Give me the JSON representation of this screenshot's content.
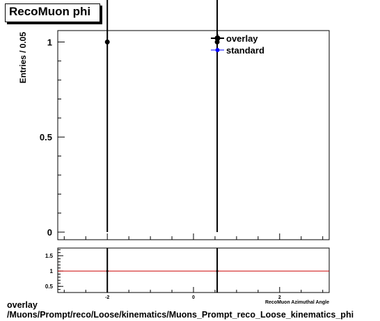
{
  "title": "RecoMuon phi",
  "footer": {
    "line1": "overlay",
    "line2": "/Muons/Prompt/reco/Loose/kinematics/Muons_Prompt_reco_Loose_kinematics_phi"
  },
  "colors": {
    "overlay": "#000000",
    "standard": "#0000ff",
    "ratio_line": "#cc0000",
    "frame": "#000000"
  },
  "chart_data": [
    {
      "type": "scatter",
      "title": "RecoMuon phi",
      "ylabel": "Entries / 0.05",
      "xlim": [
        -3.15,
        3.15
      ],
      "ylim": [
        -0.04,
        1.06
      ],
      "yticks": [
        0,
        0.5,
        1
      ],
      "ytick_labels": [
        "0",
        "0.5",
        "1"
      ],
      "legend_position": "top-right",
      "series": [
        {
          "name": "overlay",
          "marker": "filled-circle",
          "points": [
            {
              "x": -2.0,
              "y": 1,
              "yerr_low": 1,
              "yerr_high": 1
            },
            {
              "x": 0.55,
              "y": 1,
              "yerr_low": 1,
              "yerr_high": 1
            }
          ]
        },
        {
          "name": "standard",
          "marker": "filled-circle",
          "points": []
        }
      ]
    },
    {
      "type": "line",
      "xlabel": "RecoMuon Azimuthal Angle",
      "xlim": [
        -3.15,
        3.15
      ],
      "ylim": [
        0.3,
        1.75
      ],
      "xticks": [
        -2,
        0,
        2
      ],
      "xtick_labels": [
        "-2",
        "0",
        "2"
      ],
      "yticks": [
        0.5,
        1,
        1.5
      ],
      "ytick_labels": [
        "0.5",
        "1",
        "1.5"
      ],
      "reference_line": 1,
      "series": [
        {
          "points": [
            {
              "x": -2.0,
              "y": 1
            },
            {
              "x": 0.55,
              "y": 1
            }
          ]
        }
      ]
    }
  ]
}
